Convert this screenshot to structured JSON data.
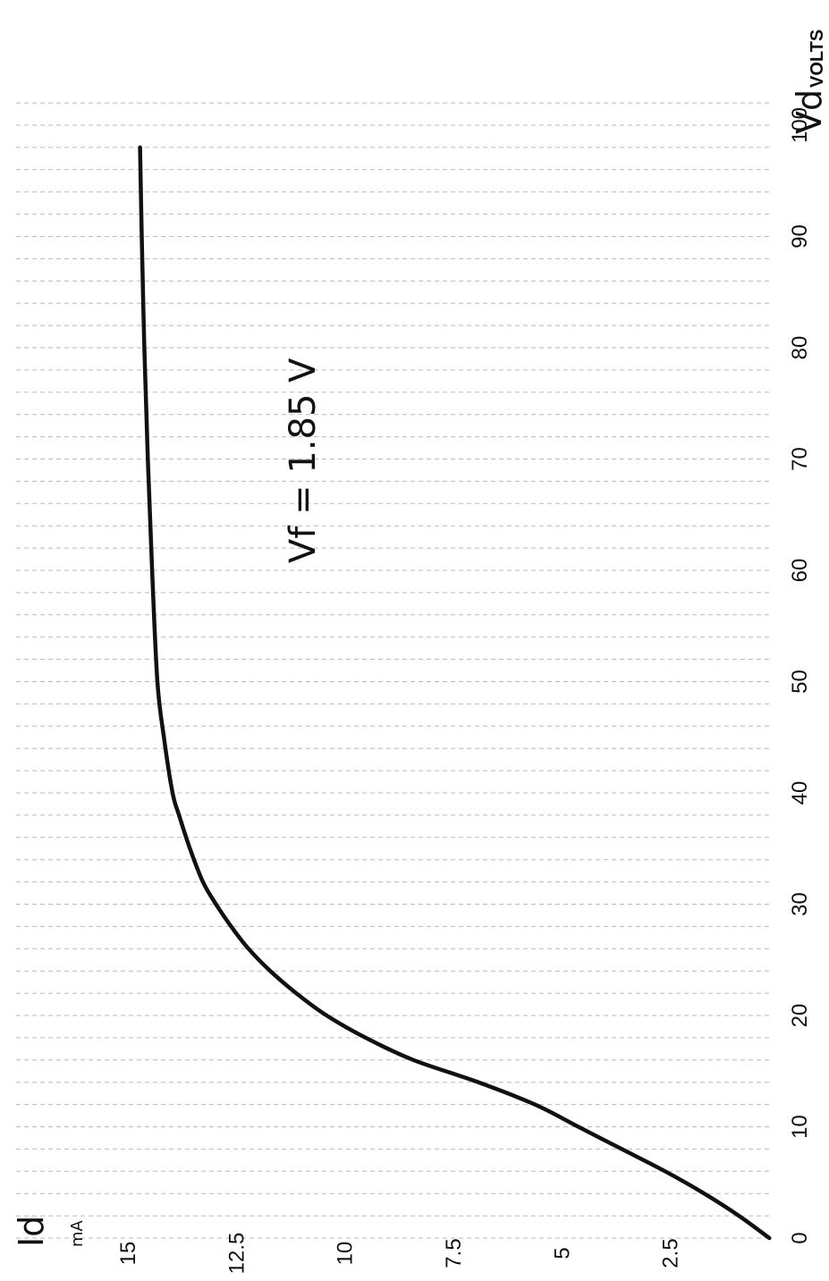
{
  "chart_data": {
    "type": "line",
    "orientation": "rotated-90",
    "xlabel": "Vd",
    "xunit": "VOLTS",
    "ylabel": "Id",
    "yunit": "mA",
    "xlim": [
      0,
      100
    ],
    "ylim": [
      0,
      15
    ],
    "x_ticks": [
      "0",
      "10",
      "20",
      "30",
      "40",
      "50",
      "60",
      "70",
      "80",
      "90",
      "100"
    ],
    "y_ticks": [
      "2.5",
      "5",
      "7.5",
      "10",
      "12.5",
      "15"
    ],
    "grid": true,
    "annotation": "Vf = 1.85 V",
    "series": [
      {
        "x": [
          0,
          2,
          4,
          6,
          8,
          10,
          12,
          14,
          16,
          18,
          20,
          22,
          24,
          26,
          28,
          30,
          32,
          35,
          38,
          40,
          45,
          50,
          60,
          70,
          80,
          90,
          98
        ],
        "y": [
          0.2,
          0.9,
          1.7,
          2.6,
          3.6,
          4.6,
          5.6,
          6.9,
          8.4,
          9.5,
          10.4,
          11.1,
          11.7,
          12.2,
          12.6,
          12.95,
          13.25,
          13.55,
          13.8,
          13.95,
          14.15,
          14.3,
          14.42,
          14.52,
          14.6,
          14.66,
          14.7
        ]
      }
    ]
  }
}
